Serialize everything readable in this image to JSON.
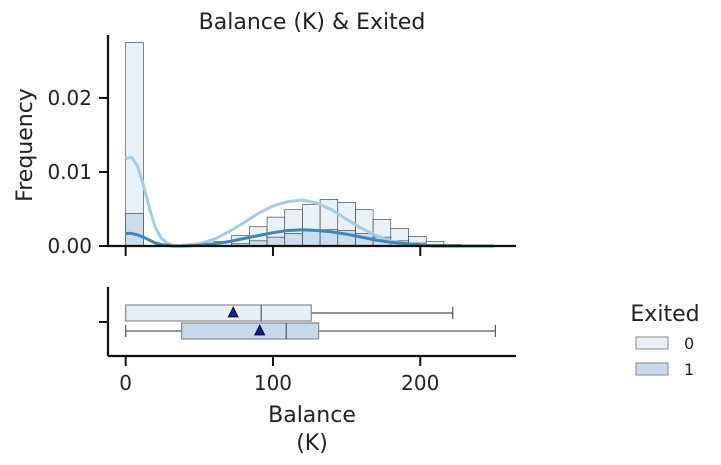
{
  "chart_data": {
    "type": "histogram+boxplot",
    "title": "Balance (K) & Exited",
    "xlabel": "Balance\n(K)",
    "ylabel": "Frequency",
    "xlim": [
      -12,
      265
    ],
    "ylim": [
      0,
      0.0285
    ],
    "x_ticks": [
      0,
      100,
      200
    ],
    "x_tick_labels": [
      "0",
      "100",
      "200"
    ],
    "y_ticks": [
      0,
      0.01,
      0.02
    ],
    "y_tick_labels": [
      "0.00",
      "0.01",
      "0.02"
    ],
    "legend": {
      "title": "Exited",
      "placement": "right",
      "labels": [
        "0",
        "1"
      ]
    },
    "bin_edges": [
      0,
      12,
      24,
      36,
      48,
      60,
      72,
      84,
      96,
      108,
      120,
      132,
      144,
      156,
      168,
      180,
      192,
      204,
      216,
      228,
      240,
      252
    ],
    "series": [
      {
        "name": "0",
        "color": "#a6cce4",
        "bar_fill": "#e7f0f7",
        "hist_values": [
          0.0275,
          0,
          0,
          0,
          0.0001,
          0.0006,
          0.0014,
          0.0026,
          0.0039,
          0.0049,
          0.0056,
          0.0063,
          0.0059,
          0.0049,
          0.0036,
          0.0024,
          0.0013,
          0.0006,
          0.0002,
          0.0001,
          0
        ],
        "kde_x": [
          0,
          4,
          8,
          12,
          16,
          20,
          24,
          28,
          32,
          36,
          40,
          50,
          60,
          70,
          80,
          90,
          100,
          110,
          120,
          130,
          140,
          150,
          160,
          170,
          180,
          190,
          200,
          210,
          220,
          230,
          240,
          250
        ],
        "kde_y": [
          0.0118,
          0.012,
          0.0108,
          0.0082,
          0.0052,
          0.0026,
          0.0011,
          0.0004,
          0.0001,
          0.0,
          0.0001,
          0.0003,
          0.0009,
          0.0019,
          0.0031,
          0.0044,
          0.0054,
          0.006,
          0.0062,
          0.0058,
          0.0049,
          0.0036,
          0.0024,
          0.0014,
          0.0007,
          0.0003,
          0.0001,
          0.0,
          0.0,
          0.0,
          0.0,
          0.0
        ],
        "box": {
          "min": 0,
          "q1": 0,
          "median": 92,
          "q3": 126,
          "max": 222,
          "mean": 73
        }
      },
      {
        "name": "1",
        "color": "#3a86bd",
        "bar_fill": "#c6d9ea",
        "hist_values": [
          0.0044,
          0,
          0,
          0,
          0,
          0.0001,
          0.0003,
          0.0007,
          0.0012,
          0.0017,
          0.0021,
          0.0022,
          0.0021,
          0.0017,
          0.0012,
          0.0007,
          0.0004,
          0.0002,
          0.0001,
          0.0001,
          0.0
        ],
        "kde_x": [
          0,
          4,
          8,
          12,
          16,
          20,
          24,
          28,
          32,
          36,
          40,
          50,
          60,
          70,
          80,
          90,
          100,
          110,
          120,
          130,
          140,
          150,
          160,
          170,
          180,
          190,
          200,
          210,
          220,
          230,
          240,
          250
        ],
        "kde_y": [
          0.0017,
          0.0017,
          0.0015,
          0.0012,
          0.0008,
          0.0004,
          0.0002,
          0.0001,
          0.0,
          0.0,
          0.0,
          0.0001,
          0.0003,
          0.0006,
          0.001,
          0.0014,
          0.0018,
          0.0021,
          0.0022,
          0.0021,
          0.0019,
          0.0016,
          0.0012,
          0.0008,
          0.0005,
          0.0003,
          0.0001,
          0.0,
          0.0,
          0.0,
          0.0,
          0.0
        ],
        "box": {
          "min": 0,
          "q1": 38,
          "median": 109,
          "q3": 131,
          "max": 251,
          "mean": 91
        }
      }
    ]
  }
}
